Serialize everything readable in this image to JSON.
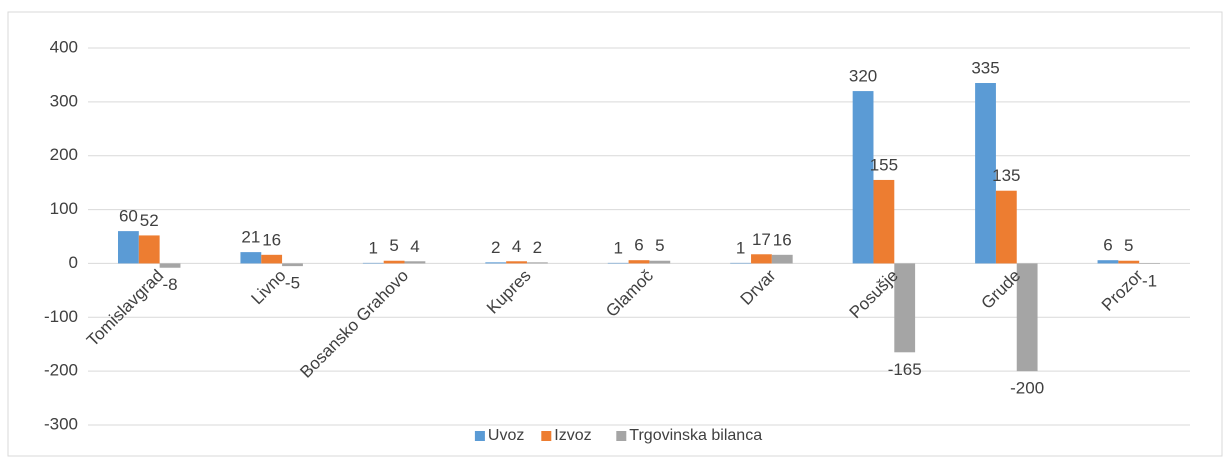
{
  "chart_data": {
    "type": "bar",
    "categories": [
      "Tomislavgrad",
      "Livno",
      "Bosansko Grahovo",
      "Kupres",
      "Glamoč",
      "Drvar",
      "Posušje",
      "Grude",
      "Prozor"
    ],
    "series": [
      {
        "name": "Uvoz",
        "color": "#5b9bd5",
        "values": [
          60,
          21,
          1,
          2,
          1,
          1,
          320,
          335,
          6
        ]
      },
      {
        "name": "Izvoz",
        "color": "#ed7d31",
        "values": [
          52,
          16,
          5,
          4,
          6,
          17,
          155,
          135,
          5
        ]
      },
      {
        "name": "Trgovinska bilanca",
        "color": "#a5a5a5",
        "values": [
          -8,
          -5,
          4,
          2,
          5,
          16,
          -165,
          -200,
          -1
        ]
      }
    ],
    "ylim": [
      -300,
      400
    ],
    "yticks": [
      -300,
      -200,
      -100,
      0,
      100,
      200,
      300,
      400
    ],
    "grid": true,
    "legend": "bottom"
  }
}
